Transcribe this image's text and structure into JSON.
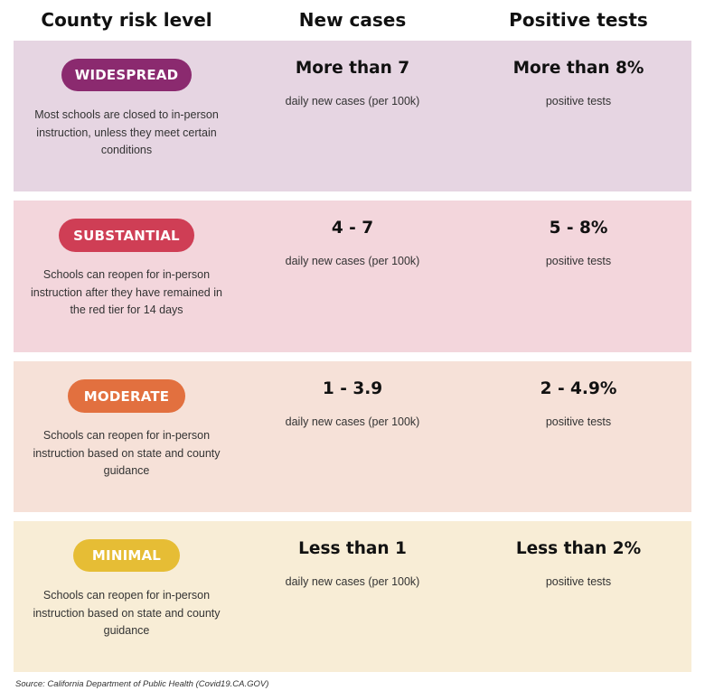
{
  "header": {
    "col1": "County risk level",
    "col2": "New cases",
    "col3": "Positive tests"
  },
  "tiers": [
    {
      "level": "WIDESPREAD",
      "description": "Most schools are closed to in-person instruction, unless they meet certain conditions",
      "new_cases": "More than 7",
      "new_cases_unit": "daily new cases (per 100k)",
      "positive_tests": "More than 8%",
      "positive_tests_unit": "positive tests",
      "bg_color": "#e6d5e2",
      "pill_color": "#8b2a6f"
    },
    {
      "level": "SUBSTANTIAL",
      "description": "Schools can reopen for in-person instruction after they have remained in the red tier for 14 days",
      "new_cases": "4 - 7",
      "new_cases_unit": "daily new cases (per 100k)",
      "positive_tests": "5 - 8%",
      "positive_tests_unit": "positive tests",
      "bg_color": "#f3d6dc",
      "pill_color": "#cf3e55"
    },
    {
      "level": "MODERATE",
      "description": "Schools can reopen for in-person instruction based on state and county guidance",
      "new_cases": "1 - 3.9",
      "new_cases_unit": "daily new cases (per 100k)",
      "positive_tests": "2 - 4.9%",
      "positive_tests_unit": "positive tests",
      "bg_color": "#f6e1d8",
      "pill_color": "#e2703f"
    },
    {
      "level": "MINIMAL",
      "description": "Schools can reopen for in-person instruction based on state and county guidance",
      "new_cases": "Less than 1",
      "new_cases_unit": "daily new cases (per 100k)",
      "positive_tests": "Less than 2%",
      "positive_tests_unit": "positive tests",
      "bg_color": "#f8edd6",
      "pill_color": "#e6bd35"
    }
  ],
  "source": "Source:  California Department of Public Health (Covid19.CA.GOV)"
}
